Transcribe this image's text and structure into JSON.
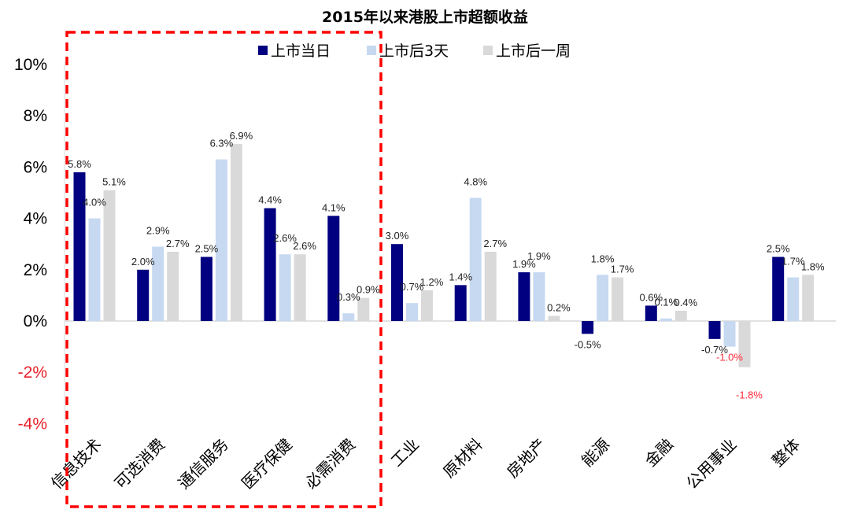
{
  "chart_data": {
    "type": "bar",
    "title": "2015年以来港股上市超额收益",
    "xlabel": "",
    "ylabel": "",
    "ylim": [
      -4,
      10
    ],
    "yticks": [
      10,
      8,
      6,
      4,
      2,
      0,
      -2,
      -4
    ],
    "ytick_labels": [
      "10%",
      "8%",
      "6%",
      "4%",
      "2%",
      "0%",
      "-2%",
      "-4%"
    ],
    "categories": [
      "信息技术",
      "可选消费",
      "通信服务",
      "医疗保健",
      "必需消费",
      "工业",
      "原材料",
      "房地产",
      "能源",
      "金融",
      "公用事业",
      "整体"
    ],
    "series": [
      {
        "name": "上市当日",
        "color": "#000080",
        "values": [
          5.8,
          2.0,
          2.5,
          4.4,
          4.1,
          3.0,
          1.4,
          1.9,
          -0.5,
          0.6,
          -0.7,
          2.5
        ],
        "labels": [
          "5.8%",
          "2.0%",
          "2.5%",
          "4.4%",
          "4.1%",
          "3.0%",
          "1.4%",
          "1.9%",
          "-0.5%",
          "0.6%",
          "-0.7%",
          "2.5%"
        ]
      },
      {
        "name": "上市后3天",
        "color": "#c6d9f1",
        "values": [
          4.0,
          2.9,
          6.3,
          2.6,
          0.3,
          0.7,
          4.8,
          1.9,
          1.8,
          0.1,
          -1.0,
          1.7
        ],
        "labels": [
          "4.0%",
          "2.9%",
          "6.3%",
          "2.6%",
          "0.3%",
          "0.7%",
          "4.8%",
          "1.9%",
          "1.8%",
          "0.1%",
          "-1.0%",
          "1.7%"
        ]
      },
      {
        "name": "上市后一周",
        "color": "#d9d9d9",
        "values": [
          5.1,
          2.7,
          6.9,
          2.6,
          0.9,
          1.2,
          2.7,
          0.2,
          1.7,
          0.4,
          -1.8,
          1.8
        ],
        "labels": [
          "5.1%",
          "2.7%",
          "6.9%",
          "2.6%",
          "0.9%",
          "1.2%",
          "2.7%",
          "0.2%",
          "1.7%",
          "0.4%",
          "-1.8%",
          "1.8%"
        ]
      }
    ],
    "legend_position": "top",
    "highlight_box": {
      "categories": [
        "信息技术",
        "可选消费",
        "通信服务",
        "医疗保健",
        "必需消费"
      ],
      "color": "#ff0000"
    },
    "negative_label_color": "#ff2a3a"
  }
}
